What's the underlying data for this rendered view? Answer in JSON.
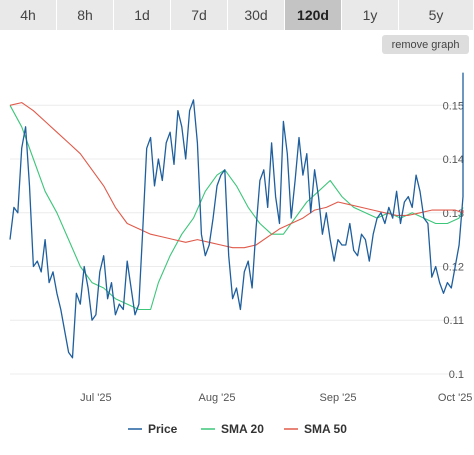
{
  "timeframes": [
    {
      "label": "4h",
      "active": false
    },
    {
      "label": "8h",
      "active": false
    },
    {
      "label": "1d",
      "active": false
    },
    {
      "label": "7d",
      "active": false
    },
    {
      "label": "30d",
      "active": false
    },
    {
      "label": "120d",
      "active": true
    },
    {
      "label": "1y",
      "active": false
    },
    {
      "label": "5y",
      "active": false
    }
  ],
  "remove_graph_label": "remove graph",
  "chart_data": {
    "type": "line",
    "title": "",
    "xlabel": "",
    "ylabel": "",
    "x_ticks": [
      {
        "label": "Jul '25",
        "day": 22
      },
      {
        "label": "Aug '25",
        "day": 53
      },
      {
        "label": "Sep '25",
        "day": 84
      },
      {
        "label": "Oct '25",
        "day": 114
      }
    ],
    "y_ticks": [
      {
        "label": "0.1",
        "value": 0.1
      },
      {
        "label": "0.11",
        "value": 0.11
      },
      {
        "label": "0.12",
        "value": 0.12
      },
      {
        "label": "0.13",
        "value": 0.13
      },
      {
        "label": "0.14",
        "value": 0.14
      },
      {
        "label": "0.15",
        "value": 0.15
      }
    ],
    "xlim": [
      0,
      116
    ],
    "ylim": [
      0.0985,
      0.1575
    ],
    "grid": true,
    "legend": "bottom",
    "series": [
      {
        "name": "Price",
        "color": "#1f5f9e",
        "points": [
          [
            0,
            0.125
          ],
          [
            1,
            0.131
          ],
          [
            2,
            0.13
          ],
          [
            3,
            0.142
          ],
          [
            4,
            0.146
          ],
          [
            5,
            0.135
          ],
          [
            6,
            0.12
          ],
          [
            7,
            0.121
          ],
          [
            8,
            0.119
          ],
          [
            9,
            0.125
          ],
          [
            10,
            0.117
          ],
          [
            11,
            0.119
          ],
          [
            12,
            0.115
          ],
          [
            13,
            0.112
          ],
          [
            14,
            0.108
          ],
          [
            15,
            0.104
          ],
          [
            16,
            0.103
          ],
          [
            17,
            0.115
          ],
          [
            18,
            0.113
          ],
          [
            19,
            0.12
          ],
          [
            20,
            0.116
          ],
          [
            21,
            0.11
          ],
          [
            22,
            0.111
          ],
          [
            23,
            0.119
          ],
          [
            24,
            0.122
          ],
          [
            25,
            0.114
          ],
          [
            26,
            0.117
          ],
          [
            27,
            0.111
          ],
          [
            28,
            0.113
          ],
          [
            29,
            0.112
          ],
          [
            30,
            0.121
          ],
          [
            31,
            0.116
          ],
          [
            32,
            0.111
          ],
          [
            33,
            0.113
          ],
          [
            34,
            0.127
          ],
          [
            35,
            0.142
          ],
          [
            36,
            0.144
          ],
          [
            37,
            0.135
          ],
          [
            38,
            0.14
          ],
          [
            39,
            0.136
          ],
          [
            40,
            0.143
          ],
          [
            41,
            0.145
          ],
          [
            42,
            0.139
          ],
          [
            43,
            0.149
          ],
          [
            44,
            0.146
          ],
          [
            45,
            0.14
          ],
          [
            46,
            0.149
          ],
          [
            47,
            0.151
          ],
          [
            48,
            0.143
          ],
          [
            49,
            0.126
          ],
          [
            50,
            0.122
          ],
          [
            51,
            0.124
          ],
          [
            52,
            0.129
          ],
          [
            53,
            0.135
          ],
          [
            54,
            0.137
          ],
          [
            55,
            0.138
          ],
          [
            56,
            0.122
          ],
          [
            57,
            0.114
          ],
          [
            58,
            0.116
          ],
          [
            59,
            0.112
          ],
          [
            60,
            0.119
          ],
          [
            61,
            0.121
          ],
          [
            62,
            0.116
          ],
          [
            63,
            0.127
          ],
          [
            64,
            0.136
          ],
          [
            65,
            0.138
          ],
          [
            66,
            0.131
          ],
          [
            67,
            0.143
          ],
          [
            68,
            0.133
          ],
          [
            69,
            0.128
          ],
          [
            70,
            0.147
          ],
          [
            71,
            0.141
          ],
          [
            72,
            0.129
          ],
          [
            73,
            0.136
          ],
          [
            74,
            0.144
          ],
          [
            75,
            0.137
          ],
          [
            76,
            0.141
          ],
          [
            77,
            0.13
          ],
          [
            78,
            0.138
          ],
          [
            79,
            0.133
          ],
          [
            80,
            0.126
          ],
          [
            81,
            0.13
          ],
          [
            82,
            0.125
          ],
          [
            83,
            0.121
          ],
          [
            84,
            0.125
          ],
          [
            85,
            0.124
          ],
          [
            86,
            0.124
          ],
          [
            87,
            0.128
          ],
          [
            88,
            0.123
          ],
          [
            89,
            0.122
          ],
          [
            90,
            0.126
          ],
          [
            91,
            0.125
          ],
          [
            92,
            0.121
          ],
          [
            93,
            0.126
          ],
          [
            94,
            0.129
          ],
          [
            95,
            0.13
          ],
          [
            96,
            0.128
          ],
          [
            97,
            0.131
          ],
          [
            98,
            0.129
          ],
          [
            99,
            0.134
          ],
          [
            100,
            0.128
          ],
          [
            101,
            0.132
          ],
          [
            102,
            0.133
          ],
          [
            103,
            0.131
          ],
          [
            104,
            0.137
          ],
          [
            105,
            0.134
          ],
          [
            106,
            0.129
          ],
          [
            107,
            0.128
          ],
          [
            108,
            0.118
          ],
          [
            109,
            0.12
          ],
          [
            110,
            0.117
          ],
          [
            111,
            0.115
          ],
          [
            112,
            0.117
          ],
          [
            113,
            0.116
          ],
          [
            114,
            0.12
          ],
          [
            115,
            0.124
          ],
          [
            116,
            0.133
          ],
          [
            117,
            0.152
          ],
          [
            118,
            0.156
          ],
          [
            119,
            0.15
          ]
        ]
      },
      {
        "name": "SMA 20",
        "color": "#3cc67a",
        "points": [
          [
            0,
            0.15
          ],
          [
            3,
            0.146
          ],
          [
            6,
            0.14
          ],
          [
            9,
            0.134
          ],
          [
            12,
            0.13
          ],
          [
            15,
            0.125
          ],
          [
            18,
            0.12
          ],
          [
            21,
            0.117
          ],
          [
            24,
            0.116
          ],
          [
            27,
            0.114
          ],
          [
            30,
            0.113
          ],
          [
            33,
            0.112
          ],
          [
            36,
            0.112
          ],
          [
            38,
            0.117
          ],
          [
            41,
            0.122
          ],
          [
            44,
            0.126
          ],
          [
            47,
            0.129
          ],
          [
            50,
            0.134
          ],
          [
            53,
            0.137
          ],
          [
            55,
            0.138
          ],
          [
            58,
            0.135
          ],
          [
            61,
            0.131
          ],
          [
            64,
            0.128
          ],
          [
            67,
            0.126
          ],
          [
            70,
            0.126
          ],
          [
            73,
            0.129
          ],
          [
            76,
            0.132
          ],
          [
            79,
            0.134
          ],
          [
            82,
            0.136
          ],
          [
            85,
            0.133
          ],
          [
            88,
            0.131
          ],
          [
            91,
            0.13
          ],
          [
            94,
            0.129
          ],
          [
            97,
            0.13
          ],
          [
            100,
            0.129
          ],
          [
            103,
            0.13
          ],
          [
            106,
            0.129
          ],
          [
            109,
            0.128
          ],
          [
            112,
            0.128
          ],
          [
            115,
            0.129
          ],
          [
            119,
            0.131
          ]
        ]
      },
      {
        "name": "SMA 50",
        "color": "#e05a4a",
        "points": [
          [
            0,
            0.15
          ],
          [
            3,
            0.1505
          ],
          [
            6,
            0.149
          ],
          [
            9,
            0.147
          ],
          [
            12,
            0.145
          ],
          [
            15,
            0.143
          ],
          [
            18,
            0.141
          ],
          [
            21,
            0.138
          ],
          [
            24,
            0.135
          ],
          [
            27,
            0.131
          ],
          [
            30,
            0.128
          ],
          [
            33,
            0.127
          ],
          [
            36,
            0.126
          ],
          [
            39,
            0.1255
          ],
          [
            42,
            0.125
          ],
          [
            45,
            0.1245
          ],
          [
            48,
            0.125
          ],
          [
            51,
            0.1245
          ],
          [
            54,
            0.124
          ],
          [
            57,
            0.1235
          ],
          [
            60,
            0.1235
          ],
          [
            63,
            0.124
          ],
          [
            66,
            0.1255
          ],
          [
            69,
            0.127
          ],
          [
            72,
            0.128
          ],
          [
            75,
            0.129
          ],
          [
            78,
            0.1305
          ],
          [
            81,
            0.131
          ],
          [
            84,
            0.132
          ],
          [
            87,
            0.1315
          ],
          [
            90,
            0.131
          ],
          [
            93,
            0.1305
          ],
          [
            96,
            0.13
          ],
          [
            99,
            0.1295
          ],
          [
            102,
            0.1295
          ],
          [
            105,
            0.13
          ],
          [
            108,
            0.1305
          ],
          [
            111,
            0.1305
          ],
          [
            114,
            0.1305
          ],
          [
            117,
            0.13
          ],
          [
            119,
            0.1305
          ]
        ]
      }
    ]
  }
}
